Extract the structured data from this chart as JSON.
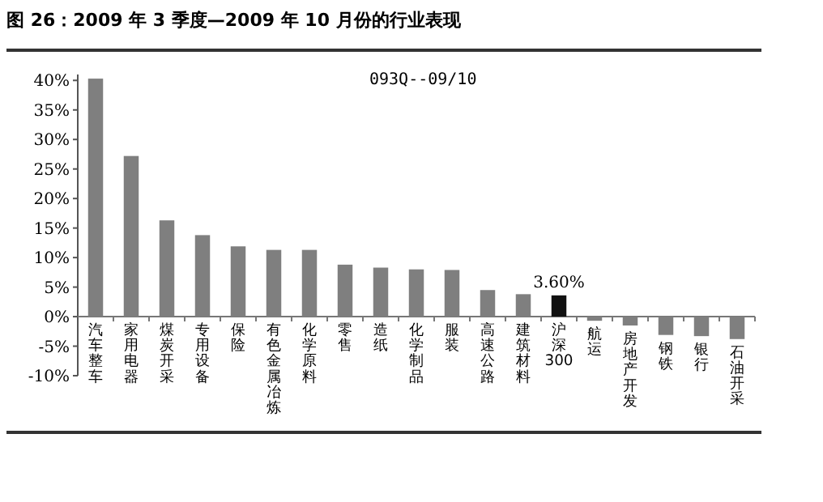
{
  "chart_data": {
    "type": "bar",
    "title": "图 26：2009 年 3 季度—2009 年 10 月份的行业表现",
    "annotations": [
      "093Q--09/10"
    ],
    "categories": [
      "汽车整车",
      "家用电器",
      "煤炭开采",
      "专用设备",
      "保险",
      "有色金属冶炼",
      "化学原料",
      "零售",
      "造纸",
      "化学制品",
      "服装",
      "高速公路",
      "建筑材料",
      "沪深300",
      "航运",
      "房地产开发",
      "钢铁",
      "银行",
      "石油开采"
    ],
    "values": [
      40.3,
      27.2,
      16.3,
      13.8,
      11.9,
      11.3,
      11.3,
      8.8,
      8.3,
      8.0,
      7.9,
      4.5,
      3.8,
      3.6,
      -0.7,
      -1.5,
      -3.1,
      -3.3,
      -3.8
    ],
    "colors": [
      "#7f7f7f",
      "#7f7f7f",
      "#7f7f7f",
      "#7f7f7f",
      "#7f7f7f",
      "#7f7f7f",
      "#7f7f7f",
      "#7f7f7f",
      "#7f7f7f",
      "#7f7f7f",
      "#7f7f7f",
      "#7f7f7f",
      "#7f7f7f",
      "#111111",
      "#7f7f7f",
      "#7f7f7f",
      "#7f7f7f",
      "#7f7f7f",
      "#7f7f7f"
    ],
    "value_labels": [
      null,
      null,
      null,
      null,
      null,
      null,
      null,
      null,
      null,
      null,
      null,
      null,
      null,
      "3.60%",
      null,
      null,
      null,
      null,
      null
    ],
    "ylim": [
      -10,
      41
    ],
    "yticks": [
      {
        "value": -10,
        "label": "-10%"
      },
      {
        "value": -5,
        "label": "-5%"
      },
      {
        "value": 0,
        "label": "0%"
      },
      {
        "value": 5,
        "label": "5%"
      },
      {
        "value": 10,
        "label": "10%"
      },
      {
        "value": 15,
        "label": "15%"
      },
      {
        "value": 20,
        "label": "20%"
      },
      {
        "value": 25,
        "label": "25%"
      },
      {
        "value": 30,
        "label": "30%"
      },
      {
        "value": 35,
        "label": "35%"
      },
      {
        "value": 40,
        "label": "40%"
      }
    ],
    "tick_labels": true
  }
}
